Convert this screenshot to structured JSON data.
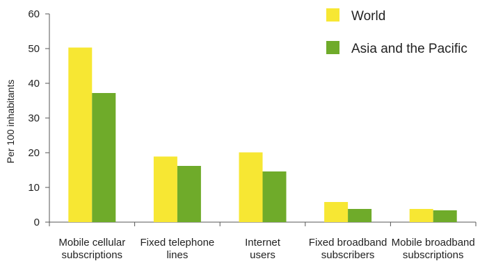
{
  "chart_data": {
    "type": "bar",
    "title": "",
    "xlabel": "",
    "ylabel": "Per 100 inhabitants",
    "ylim": [
      0,
      60
    ],
    "yticks": [
      0,
      10,
      20,
      30,
      40,
      50,
      60
    ],
    "grid": false,
    "legend_position": "top-right",
    "categories": [
      [
        "Mobile cellular",
        "subscriptions"
      ],
      [
        "Fixed telephone",
        "lines"
      ],
      [
        "Internet",
        "users"
      ],
      [
        "Fixed broadband",
        "subscribers"
      ],
      [
        "Mobile broadband",
        "subscriptions"
      ]
    ],
    "series": [
      {
        "name": "World",
        "color": "#f7e733",
        "values": [
          50.3,
          18.9,
          20.1,
          5.8,
          3.8
        ]
      },
      {
        "name": "Asia and the Pacific",
        "color": "#6fab2a",
        "values": [
          37.2,
          16.2,
          14.6,
          3.8,
          3.4
        ]
      }
    ]
  }
}
